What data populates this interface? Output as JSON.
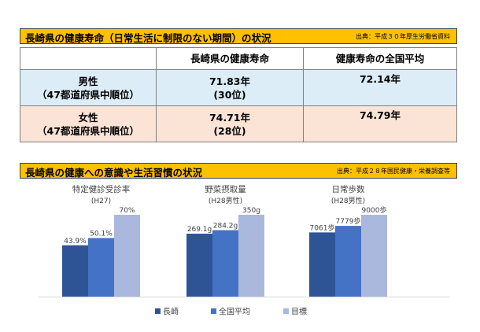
{
  "section1": {
    "title": "長崎県の健康寿命（日常生活に制限のない期間）の状況",
    "source": "出典：平成３０年厚生労働省資料",
    "headers": [
      "",
      "長崎県の健康寿命",
      "健康寿命の全国平均"
    ],
    "rows": [
      {
        "label1": "男性",
        "label2": "（47都道府県中順位）",
        "nagasaki1": "71.83年",
        "nagasaki2": "(30位)",
        "national": "72.14年"
      },
      {
        "label1": "女性",
        "label2": "（47都道府県中順位）",
        "nagasaki1": "74.71年",
        "nagasaki2": "(28位)",
        "national": "74.79年"
      }
    ],
    "colors": {
      "header_bg": "#ffc000",
      "male_row": "#dcedf8",
      "female_row": "#fbe3d6"
    }
  },
  "section2": {
    "title": "長崎県の健康への意識や生活習慣の状況",
    "source": "出典：平成２８年国民健康・栄養調査等"
  },
  "chart_data": {
    "type": "bar",
    "groups": [
      {
        "title": "特定健診受診率",
        "subtitle": "(H27)",
        "values": [
          43.9,
          50.1,
          70
        ],
        "labels": [
          "43.9%",
          "50.1%",
          "70%"
        ],
        "max": 70
      },
      {
        "title": "野菜摂取量",
        "subtitle": "(H28男性)",
        "values": [
          269.1,
          284.2,
          350
        ],
        "labels": [
          "269.1g",
          "284.2g",
          "350g"
        ],
        "max": 350
      },
      {
        "title": "日常歩数",
        "subtitle": "(H28男性)",
        "values": [
          7061,
          7779,
          9000
        ],
        "labels": [
          "7061歩",
          "7779歩",
          "9000歩"
        ],
        "max": 9000
      }
    ],
    "series": [
      {
        "name": "長崎",
        "color": "#2f5496"
      },
      {
        "name": "全国平均",
        "color": "#4472c4"
      },
      {
        "name": "目標",
        "color": "#a9b8dc"
      }
    ],
    "grid": false,
    "legend": "bottom"
  }
}
